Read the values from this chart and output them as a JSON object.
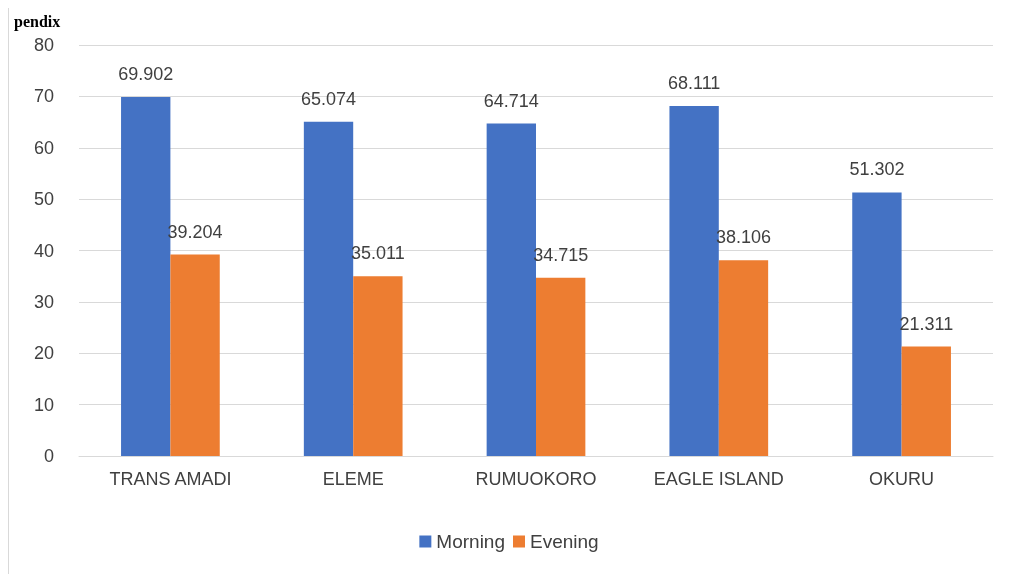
{
  "chart_data": {
    "type": "bar",
    "title": "pendix",
    "categories": [
      "TRANS AMADI",
      "ELEME",
      "RUMUOKORO",
      "EAGLE ISLAND",
      "OKURU"
    ],
    "series": [
      {
        "name": "Morning",
        "color": "#4472c4",
        "values": [
          69.902,
          65.074,
          64.714,
          68.111,
          51.302
        ]
      },
      {
        "name": "Evening",
        "color": "#ed7d31",
        "values": [
          39.204,
          35.011,
          34.715,
          38.106,
          21.311
        ]
      }
    ],
    "ylim": [
      0,
      80
    ],
    "yticks": [
      0,
      10,
      20,
      30,
      40,
      50,
      60,
      70,
      80
    ],
    "grid": "y",
    "legend": "bottom",
    "data_labels": true
  }
}
